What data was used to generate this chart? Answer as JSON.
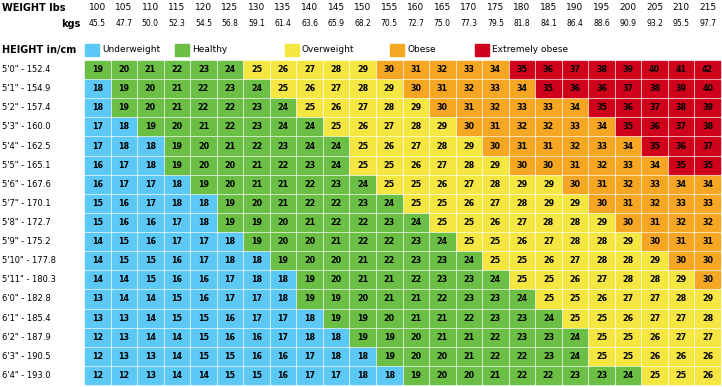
{
  "weight_lbs": [
    100,
    105,
    110,
    115,
    120,
    125,
    130,
    135,
    140,
    145,
    150,
    155,
    160,
    165,
    170,
    175,
    180,
    185,
    190,
    195,
    200,
    205,
    210,
    215
  ],
  "weight_kgs": [
    "45.5",
    "47.7",
    "50.0",
    "52.3",
    "54.5",
    "56.8",
    "59.1",
    "61.4",
    "63.6",
    "65.9",
    "68.2",
    "70.5",
    "72.7",
    "75.0",
    "77.3",
    "79.5",
    "81.8",
    "84.1",
    "86.4",
    "88.6",
    "90.9",
    "93.2",
    "95.5",
    "97.7"
  ],
  "heights": [
    "5'0\" - 152.4",
    "5'1\" - 154.9",
    "5'2\" - 157.4",
    "5'3\" - 160.0",
    "5'4\" - 162.5",
    "5'5\" - 165.1",
    "5'6\" - 167.6",
    "5'7\" - 170.1",
    "5'8\" - 172.7",
    "5'9\" - 175.2",
    "5'10\" - 177.8",
    "5'11\" - 180.3",
    "6'0\" - 182.8",
    "6'1\" - 185.4",
    "6'2\" - 187.9",
    "6'3\" - 190.5",
    "6'4\" - 193.0"
  ],
  "bmi_data": [
    [
      19,
      20,
      21,
      22,
      23,
      24,
      25,
      26,
      27,
      28,
      29,
      30,
      31,
      32,
      33,
      34,
      35,
      36,
      37,
      38,
      39,
      40,
      41,
      42
    ],
    [
      18,
      19,
      20,
      21,
      22,
      23,
      24,
      25,
      26,
      27,
      28,
      29,
      30,
      31,
      32,
      33,
      34,
      35,
      36,
      36,
      37,
      38,
      39,
      40
    ],
    [
      18,
      19,
      20,
      21,
      22,
      22,
      23,
      24,
      25,
      26,
      27,
      28,
      29,
      30,
      31,
      32,
      33,
      33,
      34,
      35,
      36,
      37,
      38,
      39
    ],
    [
      17,
      18,
      19,
      20,
      21,
      22,
      23,
      24,
      24,
      25,
      26,
      27,
      28,
      29,
      30,
      31,
      32,
      32,
      33,
      34,
      35,
      36,
      37,
      38
    ],
    [
      17,
      18,
      18,
      19,
      20,
      21,
      22,
      23,
      24,
      24,
      25,
      26,
      27,
      28,
      29,
      30,
      31,
      31,
      32,
      33,
      34,
      35,
      36,
      37
    ],
    [
      16,
      17,
      18,
      19,
      20,
      20,
      21,
      22,
      23,
      24,
      25,
      25,
      26,
      27,
      28,
      29,
      30,
      30,
      31,
      32,
      33,
      34,
      35,
      35
    ],
    [
      16,
      17,
      17,
      18,
      19,
      20,
      21,
      21,
      22,
      23,
      24,
      25,
      25,
      26,
      27,
      28,
      29,
      29,
      30,
      31,
      32,
      33,
      34,
      34
    ],
    [
      15,
      16,
      17,
      18,
      18,
      19,
      20,
      21,
      22,
      22,
      23,
      24,
      25,
      25,
      26,
      27,
      28,
      29,
      29,
      30,
      31,
      32,
      33,
      33
    ],
    [
      15,
      16,
      16,
      17,
      18,
      19,
      19,
      20,
      21,
      22,
      22,
      23,
      24,
      25,
      25,
      26,
      27,
      28,
      28,
      29,
      30,
      31,
      32,
      32
    ],
    [
      14,
      15,
      16,
      17,
      17,
      18,
      19,
      20,
      20,
      21,
      22,
      22,
      23,
      24,
      25,
      25,
      26,
      27,
      28,
      28,
      29,
      30,
      31,
      31
    ],
    [
      14,
      15,
      15,
      16,
      17,
      18,
      18,
      19,
      20,
      20,
      21,
      22,
      23,
      23,
      24,
      25,
      25,
      26,
      27,
      28,
      28,
      29,
      30,
      30
    ],
    [
      14,
      14,
      15,
      16,
      16,
      17,
      18,
      18,
      19,
      20,
      21,
      21,
      22,
      23,
      23,
      24,
      25,
      25,
      26,
      27,
      28,
      28,
      29,
      30
    ],
    [
      13,
      14,
      14,
      15,
      16,
      17,
      17,
      18,
      19,
      19,
      20,
      21,
      21,
      22,
      23,
      23,
      24,
      25,
      25,
      26,
      27,
      27,
      28,
      29
    ],
    [
      13,
      13,
      14,
      15,
      15,
      16,
      17,
      17,
      18,
      19,
      19,
      20,
      21,
      21,
      22,
      23,
      23,
      24,
      25,
      25,
      26,
      27,
      27,
      28
    ],
    [
      12,
      13,
      14,
      14,
      15,
      16,
      16,
      17,
      18,
      18,
      19,
      19,
      20,
      21,
      21,
      22,
      23,
      23,
      24,
      25,
      25,
      26,
      27,
      27
    ],
    [
      12,
      13,
      13,
      14,
      15,
      15,
      16,
      16,
      17,
      18,
      18,
      19,
      20,
      20,
      21,
      22,
      22,
      23,
      24,
      25,
      25,
      26,
      26,
      26
    ],
    [
      12,
      12,
      13,
      14,
      14,
      15,
      15,
      16,
      17,
      17,
      18,
      18,
      19,
      20,
      20,
      21,
      22,
      22,
      23,
      23,
      24,
      25,
      25,
      26
    ]
  ],
  "color_underweight": "#5BC8F5",
  "color_healthy": "#6ABF44",
  "color_overweight": "#F5E642",
  "color_obese": "#F5A623",
  "color_extremely_obese": "#D0021B",
  "bg_color": "#FFFFFF",
  "legend_items": [
    {
      "color": "#5BC8F5",
      "label": "Underweight"
    },
    {
      "color": "#6ABF44",
      "label": "Healthy"
    },
    {
      "color": "#F5E642",
      "label": "Overweight"
    },
    {
      "color": "#F5A623",
      "label": "Obese"
    },
    {
      "color": "#D0021B",
      "label": "Extremely obese"
    }
  ],
  "header_lbs": "WEIGHT lbs",
  "header_kgs": "kgs",
  "header_height": "HEIGHT in/cm"
}
